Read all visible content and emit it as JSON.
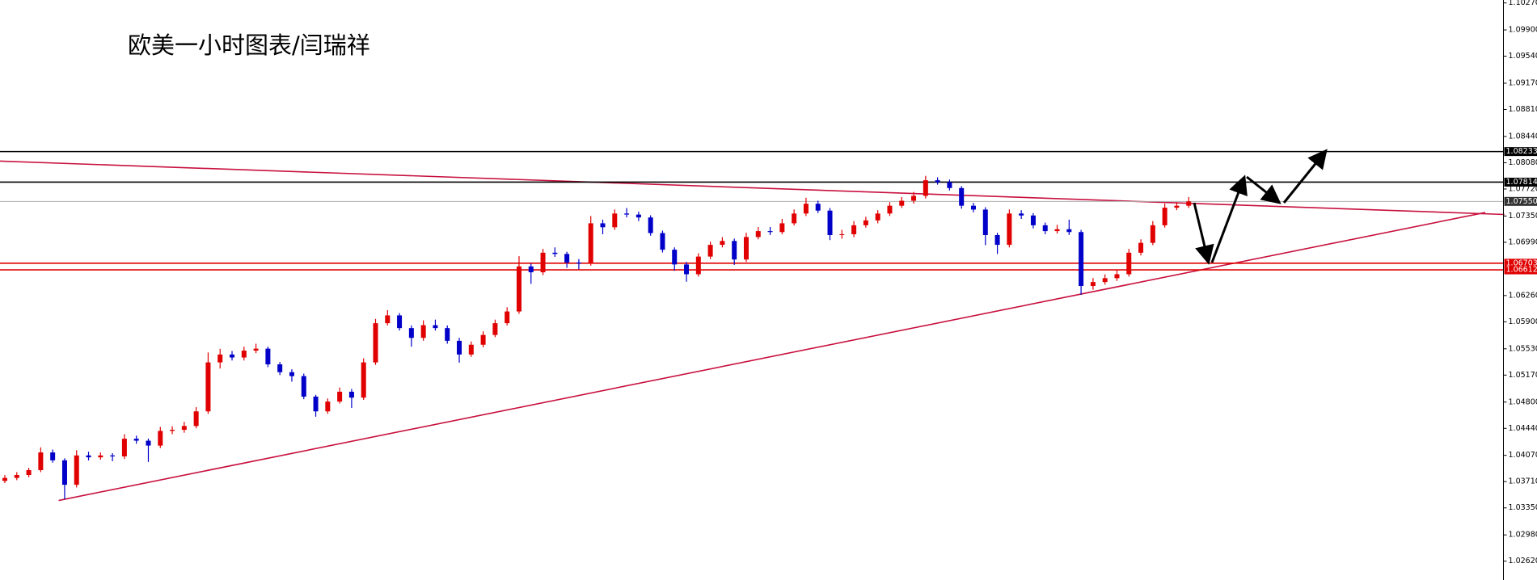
{
  "chart_data": {
    "type": "candlestick",
    "title": "欧美一小时图表/闫瑞祥",
    "up_color": "#e00000",
    "down_color": "#0000c8",
    "ylim": [
      1.02362,
      1.1031
    ],
    "yticks": [
      {
        "value": 1.1027,
        "label": "1.10270"
      },
      {
        "value": 1.099,
        "label": "1.09900"
      },
      {
        "value": 1.0954,
        "label": "1.09540"
      },
      {
        "value": 1.0917,
        "label": "1.09170"
      },
      {
        "value": 1.0881,
        "label": "1.08810"
      },
      {
        "value": 1.0844,
        "label": "1.08440"
      },
      {
        "value": 1.0808,
        "label": "1.08080"
      },
      {
        "value": 1.0772,
        "label": "1.07720"
      },
      {
        "value": 1.0735,
        "label": "1.07350"
      },
      {
        "value": 1.0699,
        "label": "1.06990"
      },
      {
        "value": 1.0626,
        "label": "1.06260"
      },
      {
        "value": 1.059,
        "label": "1.05900"
      },
      {
        "value": 1.0553,
        "label": "1.05530"
      },
      {
        "value": 1.0517,
        "label": "1.05170"
      },
      {
        "value": 1.048,
        "label": "1.04800"
      },
      {
        "value": 1.0444,
        "label": "1.04440"
      },
      {
        "value": 1.0407,
        "label": "1.04070"
      },
      {
        "value": 1.0371,
        "label": "1.03710"
      },
      {
        "value": 1.0335,
        "label": "1.03350"
      },
      {
        "value": 1.0298,
        "label": "1.02980"
      },
      {
        "value": 1.0262,
        "label": "1.02620"
      }
    ],
    "levels": [
      {
        "value": 1.08233,
        "label": "1.08233",
        "color": "#000000"
      },
      {
        "value": 1.07814,
        "label": "1.07814",
        "color": "#000000"
      },
      {
        "value": 1.0755,
        "label": "1.07550",
        "color": "#b0b0b0"
      },
      {
        "value": 1.06703,
        "label": "1.06703",
        "color": "#e00000"
      },
      {
        "value": 1.06612,
        "label": "1.06612",
        "color": "#e00000"
      }
    ],
    "trendlines": [
      {
        "color": "#c8103e",
        "points": [
          [
            -0.41,
            1.08102
          ],
          [
            125.4,
            1.07371
          ]
        ]
      },
      {
        "color": "#c8103e",
        "points": [
          [
            4.5,
            1.03452
          ],
          [
            123.8,
            1.07398
          ]
        ]
      }
    ],
    "candles": [
      [
        1.0372,
        1.038,
        1.0369,
        1.03761
      ],
      [
        1.03761,
        1.0384,
        1.0373,
        1.03801
      ],
      [
        1.03801,
        1.039,
        1.0377,
        1.03868
      ],
      [
        1.03868,
        1.0418,
        1.0384,
        1.0411
      ],
      [
        1.0411,
        1.0415,
        1.0397,
        1.04002
      ],
      [
        1.04002,
        1.0403,
        1.0347,
        1.03667
      ],
      [
        1.03667,
        1.0414,
        1.0363,
        1.04069
      ],
      [
        1.04069,
        1.0412,
        1.04,
        1.04043
      ],
      [
        1.04043,
        1.0411,
        1.0401,
        1.04069
      ],
      [
        1.04069,
        1.041,
        1.0399,
        1.04056
      ],
      [
        1.04056,
        1.0436,
        1.0402,
        1.04298
      ],
      [
        1.04298,
        1.0434,
        1.0423,
        1.04271
      ],
      [
        1.04271,
        1.043,
        1.0398,
        1.04204
      ],
      [
        1.04204,
        1.0446,
        1.0417,
        1.04405
      ],
      [
        1.04405,
        1.0447,
        1.0436,
        1.0442
      ],
      [
        1.0442,
        1.0453,
        1.0438,
        1.04472
      ],
      [
        1.04472,
        1.0473,
        1.0444,
        1.04673
      ],
      [
        1.04673,
        1.0548,
        1.0464,
        1.05344
      ],
      [
        1.05344,
        1.0553,
        1.0526,
        1.05452
      ],
      [
        1.05452,
        1.055,
        1.0537,
        1.05411
      ],
      [
        1.05411,
        1.0556,
        1.0537,
        1.05505
      ],
      [
        1.05505,
        1.056,
        1.0547,
        1.05532
      ],
      [
        1.05532,
        1.0556,
        1.0528,
        1.05317
      ],
      [
        1.05317,
        1.0535,
        1.0517,
        1.0521
      ],
      [
        1.0521,
        1.0525,
        1.0508,
        1.05156
      ],
      [
        1.05156,
        1.0519,
        1.0484,
        1.04875
      ],
      [
        1.04875,
        1.049,
        1.046,
        1.04673
      ],
      [
        1.04673,
        1.0485,
        1.0464,
        1.04807
      ],
      [
        1.04807,
        1.05,
        1.0478,
        1.04942
      ],
      [
        1.04942,
        1.0498,
        1.0472,
        1.04861
      ],
      [
        1.04861,
        1.054,
        1.0483,
        1.05344
      ],
      [
        1.05344,
        1.0594,
        1.0531,
        1.05881
      ],
      [
        1.05881,
        1.0606,
        1.0585,
        1.05988
      ],
      [
        1.05988,
        1.0602,
        1.0578,
        1.05814
      ],
      [
        1.05814,
        1.0585,
        1.0556,
        1.0568
      ],
      [
        1.0568,
        1.0592,
        1.0564,
        1.05854
      ],
      [
        1.05854,
        1.0593,
        1.0578,
        1.05814
      ],
      [
        1.05814,
        1.0585,
        1.056,
        1.0564
      ],
      [
        1.0564,
        1.0568,
        1.0534,
        1.05452
      ],
      [
        1.05452,
        1.0563,
        1.0542,
        1.05586
      ],
      [
        1.05586,
        1.0577,
        1.0555,
        1.0572
      ],
      [
        1.0572,
        1.0593,
        1.0569,
        1.05881
      ],
      [
        1.05881,
        1.061,
        1.0585,
        1.06042
      ],
      [
        1.06042,
        1.068,
        1.0601,
        1.06659
      ],
      [
        1.06659,
        1.067,
        1.0642,
        1.06579
      ],
      [
        1.06579,
        1.069,
        1.0654,
        1.06847
      ],
      [
        1.06847,
        1.0692,
        1.0679,
        1.0683
      ],
      [
        1.0683,
        1.0686,
        1.0664,
        1.06713
      ],
      [
        1.06713,
        1.0676,
        1.0662,
        1.067
      ],
      [
        1.067,
        1.0735,
        1.0667,
        1.0725
      ],
      [
        1.0725,
        1.073,
        1.071,
        1.07196
      ],
      [
        1.07196,
        1.0744,
        1.0716,
        1.07384
      ],
      [
        1.07384,
        1.0746,
        1.0733,
        1.0737
      ],
      [
        1.0737,
        1.0741,
        1.0728,
        1.0733
      ],
      [
        1.0733,
        1.0736,
        1.0708,
        1.07116
      ],
      [
        1.07116,
        1.0715,
        1.0685,
        1.06888
      ],
      [
        1.06888,
        1.0692,
        1.066,
        1.06686
      ],
      [
        1.06686,
        1.0672,
        1.0645,
        1.06552
      ],
      [
        1.06552,
        1.0684,
        1.0652,
        1.06794
      ],
      [
        1.06794,
        1.07,
        1.0676,
        1.06955
      ],
      [
        1.06955,
        1.0706,
        1.0692,
        1.07008
      ],
      [
        1.07008,
        1.0704,
        1.0668,
        1.06754
      ],
      [
        1.06754,
        1.0712,
        1.0672,
        1.07062
      ],
      [
        1.07062,
        1.072,
        1.0703,
        1.07143
      ],
      [
        1.07143,
        1.072,
        1.0709,
        1.0713
      ],
      [
        1.0713,
        1.0731,
        1.071,
        1.0725
      ],
      [
        1.0725,
        1.0744,
        1.0722,
        1.07384
      ],
      [
        1.07384,
        1.076,
        1.0735,
        1.07518
      ],
      [
        1.07518,
        1.0756,
        1.0739,
        1.07424
      ],
      [
        1.07424,
        1.0746,
        1.0702,
        1.07089
      ],
      [
        1.07089,
        1.0716,
        1.0704,
        1.071
      ],
      [
        1.071,
        1.0728,
        1.0706,
        1.07223
      ],
      [
        1.07223,
        1.0734,
        1.0719,
        1.0729
      ],
      [
        1.0729,
        1.0743,
        1.0725,
        1.07384
      ],
      [
        1.07384,
        1.0754,
        1.0735,
        1.07491
      ],
      [
        1.07491,
        1.0761,
        1.0746,
        1.07559
      ],
      [
        1.07559,
        1.0768,
        1.0752,
        1.07626
      ],
      [
        1.07626,
        1.079,
        1.0759,
        1.0784
      ],
      [
        1.0784,
        1.0788,
        1.0778,
        1.07814
      ],
      [
        1.07814,
        1.0785,
        1.077,
        1.07733
      ],
      [
        1.07733,
        1.0776,
        1.0745,
        1.07491
      ],
      [
        1.07491,
        1.0753,
        1.074,
        1.07438
      ],
      [
        1.07438,
        1.0747,
        1.0695,
        1.07089
      ],
      [
        1.07089,
        1.0712,
        1.0683,
        1.06955
      ],
      [
        1.06955,
        1.0744,
        1.0692,
        1.07384
      ],
      [
        1.07384,
        1.0743,
        1.0731,
        1.07357
      ],
      [
        1.07357,
        1.0739,
        1.0718,
        1.07223
      ],
      [
        1.07223,
        1.0726,
        1.071,
        1.07143
      ],
      [
        1.07143,
        1.0723,
        1.0711,
        1.07169
      ],
      [
        1.07169,
        1.073,
        1.0709,
        1.0713
      ],
      [
        1.0713,
        1.0716,
        1.0627,
        1.06391
      ],
      [
        1.06391,
        1.065,
        1.0634,
        1.06445
      ],
      [
        1.06445,
        1.0655,
        1.0641,
        1.06498
      ],
      [
        1.06498,
        1.0661,
        1.0646,
        1.06552
      ],
      [
        1.06552,
        1.069,
        1.0652,
        1.06847
      ],
      [
        1.06847,
        1.0703,
        1.0681,
        1.06982
      ],
      [
        1.06982,
        1.0728,
        1.0695,
        1.07223
      ],
      [
        1.07223,
        1.0752,
        1.0719,
        1.07464
      ],
      [
        1.07464,
        1.0754,
        1.0743,
        1.07491
      ],
      [
        1.07491,
        1.0761,
        1.0746,
        1.0755
      ]
    ]
  }
}
